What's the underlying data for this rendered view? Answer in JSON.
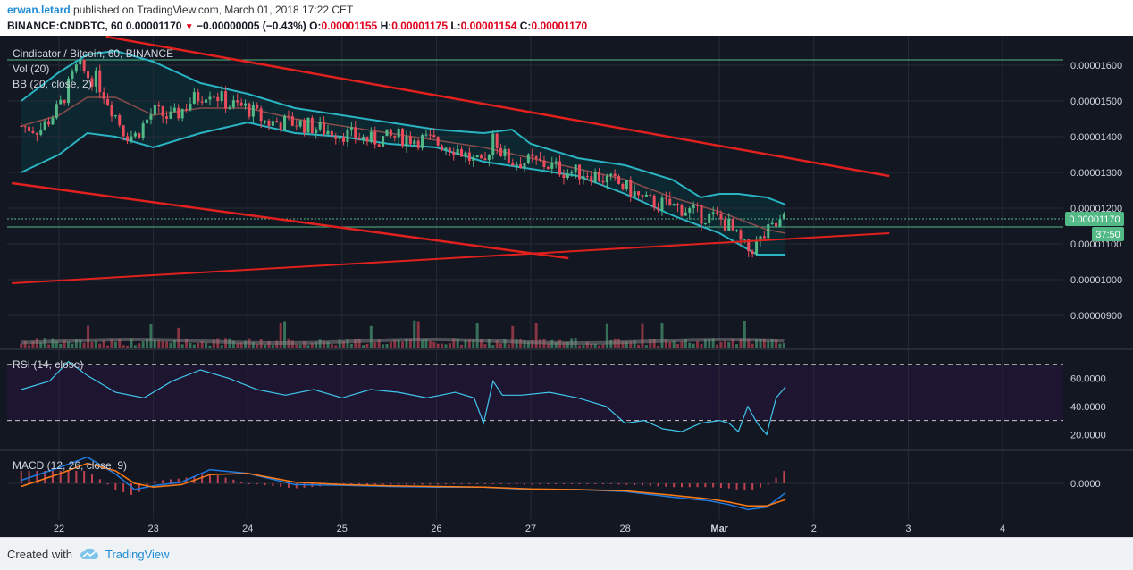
{
  "header": {
    "author": "erwan.letard",
    "published": "published on TradingView.com, March 01, 2018 17:22 CET",
    "symbol": "BINANCE:CNDBTC, 60",
    "last": "0.00001170",
    "change": "−0.00000005 (−0.43%)",
    "o_label": "O:",
    "o": "0.00001155",
    "h_label": "H:",
    "h": "0.00001175",
    "l_label": "L:",
    "l": "0.00001154",
    "c_label": "C:",
    "c": "0.00001170"
  },
  "footer": {
    "created_with": "Created with",
    "brand": "TradingView"
  },
  "colors": {
    "background": "#131722",
    "bb_fill": "#0d2731",
    "bb_band": "#2ab3c2",
    "bb_basis": "#8a4b4b",
    "candle_up": "#53b987",
    "candle_down": "#eb4d5c",
    "trendline": "#e0211d",
    "rsi_line": "#3fc6ec",
    "rsi_fill": "#1e1530",
    "macd_line": "#1f7ae0",
    "signal_line": "#ff7b16",
    "price_label": "#53b987"
  },
  "chart_data": [
    {
      "type": "candlestick",
      "title": "Cindicator / Bitcoin, 60, BINANCE",
      "indicators": [
        "Vol (20)",
        "BB (20, close, 2)"
      ],
      "x_ticks": [
        "22",
        "23",
        "24",
        "25",
        "26",
        "27",
        "28",
        "Mar",
        "2",
        "3",
        "4"
      ],
      "y_ticks": [
        "0.00001600",
        "0.00001500",
        "0.00001400",
        "0.00001300",
        "0.00001200",
        "0.00001100",
        "0.00001000",
        "0.00000900"
      ],
      "ylim": [
        8.3e-06,
        1.72e-05
      ],
      "last_price": "0.00001170",
      "countdown": "37:50",
      "series": [
        {
          "name": "close (approx.)",
          "x": [
            21.6,
            21.8,
            22.0,
            22.1,
            22.2,
            22.3,
            22.4,
            22.5,
            22.6,
            22.7,
            22.8,
            23.0,
            23.2,
            23.4,
            23.6,
            23.8,
            24.0,
            24.2,
            24.5,
            24.8,
            25.0,
            25.3,
            25.6,
            25.9,
            26.2,
            26.4,
            26.5,
            26.6,
            26.7,
            26.8,
            27.0,
            27.2,
            27.4,
            27.6,
            27.8,
            28.0,
            28.2,
            28.4,
            28.6,
            28.8,
            29.0,
            29.1,
            29.2,
            29.3,
            29.4,
            29.5,
            29.6,
            29.7
          ],
          "values": [
            1.43e-05,
            1.42e-05,
            1.48e-05,
            1.54e-05,
            1.6e-05,
            1.57e-05,
            1.56e-05,
            1.51e-05,
            1.46e-05,
            1.41e-05,
            1.4e-05,
            1.47e-05,
            1.45e-05,
            1.5e-05,
            1.53e-05,
            1.49e-05,
            1.48e-05,
            1.44e-05,
            1.44e-05,
            1.42e-05,
            1.41e-05,
            1.39e-05,
            1.4e-05,
            1.39e-05,
            1.37e-05,
            1.33e-05,
            1.31e-05,
            1.41e-05,
            1.35e-05,
            1.33e-05,
            1.33e-05,
            1.32e-05,
            1.3e-05,
            1.3e-05,
            1.28e-05,
            1.26e-05,
            1.22e-05,
            1.21e-05,
            1.2e-05,
            1.18e-05,
            1.17e-05,
            1.15e-05,
            1.11e-05,
            1.08e-05,
            1.1e-05,
            1.13e-05,
            1.15e-05,
            1.17e-05
          ]
        },
        {
          "name": "BB upper (approx.)",
          "x": [
            21.6,
            22.0,
            22.3,
            22.6,
            23.0,
            23.5,
            24.0,
            24.5,
            25.0,
            25.5,
            26.0,
            26.5,
            26.8,
            27.0,
            27.5,
            28.0,
            28.5,
            28.8,
            29.0,
            29.2,
            29.5,
            29.7
          ],
          "values": [
            1.5e-05,
            1.58e-05,
            1.63e-05,
            1.64e-05,
            1.61e-05,
            1.55e-05,
            1.52e-05,
            1.48e-05,
            1.46e-05,
            1.44e-05,
            1.42e-05,
            1.41e-05,
            1.42e-05,
            1.38e-05,
            1.34e-05,
            1.32e-05,
            1.28e-05,
            1.23e-05,
            1.24e-05,
            1.24e-05,
            1.23e-05,
            1.21e-05
          ]
        },
        {
          "name": "BB basis (approx.)",
          "x": [
            21.6,
            22.0,
            22.3,
            22.6,
            23.0,
            23.5,
            24.0,
            24.5,
            25.0,
            25.5,
            26.0,
            26.5,
            27.0,
            27.5,
            28.0,
            28.5,
            29.0,
            29.3,
            29.5,
            29.7
          ],
          "values": [
            1.43e-05,
            1.46e-05,
            1.51e-05,
            1.51e-05,
            1.46e-05,
            1.48e-05,
            1.48e-05,
            1.45e-05,
            1.43e-05,
            1.41e-05,
            1.39e-05,
            1.37e-05,
            1.34e-05,
            1.31e-05,
            1.28e-05,
            1.23e-05,
            1.19e-05,
            1.16e-05,
            1.14e-05,
            1.13e-05
          ]
        },
        {
          "name": "BB lower (approx.)",
          "x": [
            21.6,
            22.0,
            22.3,
            22.6,
            23.0,
            23.5,
            24.0,
            24.5,
            25.0,
            25.5,
            26.0,
            26.5,
            27.0,
            27.5,
            28.0,
            28.5,
            29.0,
            29.2,
            29.4,
            29.6,
            29.7
          ],
          "values": [
            1.3e-05,
            1.35e-05,
            1.41e-05,
            1.4e-05,
            1.37e-05,
            1.41e-05,
            1.44e-05,
            1.41e-05,
            1.4e-05,
            1.38e-05,
            1.37e-05,
            1.33e-05,
            1.31e-05,
            1.29e-05,
            1.24e-05,
            1.18e-05,
            1.13e-05,
            1.1e-05,
            1.07e-05,
            1.07e-05,
            1.07e-05
          ]
        },
        {
          "name": "trendline A",
          "x": [
            22.5,
            30.8
          ],
          "values": [
            1.68e-05,
            1.29e-05
          ]
        },
        {
          "name": "trendline B",
          "x": [
            21.5,
            27.4
          ],
          "values": [
            1.27e-05,
            1.06e-05
          ]
        },
        {
          "name": "trendline C",
          "x": [
            21.5,
            30.8
          ],
          "values": [
            9.9e-06,
            1.13e-05
          ]
        }
      ]
    },
    {
      "type": "line",
      "title": "RSI (14, close)",
      "y_ticks": [
        "60.0000",
        "40.0000",
        "20.0000"
      ],
      "ylim": [
        10,
        80
      ],
      "levels": [
        70,
        30
      ],
      "series": [
        {
          "name": "RSI (approx.)",
          "x": [
            21.6,
            21.9,
            22.1,
            22.3,
            22.6,
            22.9,
            23.2,
            23.5,
            23.8,
            24.1,
            24.4,
            24.7,
            25.0,
            25.3,
            25.6,
            25.9,
            26.2,
            26.4,
            26.5,
            26.6,
            26.7,
            26.9,
            27.2,
            27.5,
            27.8,
            28.0,
            28.2,
            28.4,
            28.6,
            28.8,
            29.0,
            29.1,
            29.2,
            29.3,
            29.4,
            29.5,
            29.6,
            29.7
          ],
          "values": [
            52,
            58,
            72,
            62,
            50,
            46,
            58,
            66,
            60,
            52,
            48,
            52,
            46,
            52,
            50,
            46,
            50,
            46,
            28,
            58,
            48,
            48,
            50,
            46,
            40,
            28,
            30,
            24,
            22,
            28,
            30,
            28,
            22,
            40,
            28,
            20,
            46,
            54
          ]
        }
      ]
    },
    {
      "type": "line",
      "title": "MACD (12, 26, close, 9)",
      "y_ticks": [
        "0.0000"
      ],
      "ylim": [
        -5,
        5
      ],
      "series": [
        {
          "name": "MACD (approx.)",
          "x": [
            21.6,
            22.0,
            22.3,
            22.6,
            22.8,
            23.0,
            23.3,
            23.6,
            24.0,
            24.5,
            25.0,
            25.5,
            26.0,
            26.5,
            27.0,
            27.5,
            28.0,
            28.5,
            28.9,
            29.1,
            29.3,
            29.5,
            29.7
          ],
          "values": [
            0.5,
            2.5,
            4.2,
            1.5,
            -1.0,
            -0.4,
            0.2,
            2.2,
            1.6,
            -0.2,
            -0.3,
            -0.5,
            -0.6,
            -0.6,
            -1.0,
            -1.0,
            -1.3,
            -2.2,
            -2.8,
            -3.4,
            -4.2,
            -3.8,
            -1.5
          ]
        },
        {
          "name": "Signal (approx.)",
          "x": [
            21.6,
            22.0,
            22.3,
            22.6,
            22.8,
            23.0,
            23.3,
            23.6,
            24.0,
            24.5,
            25.0,
            25.5,
            26.0,
            26.5,
            27.0,
            27.5,
            28.0,
            28.5,
            28.9,
            29.1,
            29.3,
            29.5,
            29.7
          ],
          "values": [
            -0.5,
            1.5,
            3.2,
            2.0,
            0.0,
            -0.6,
            -0.2,
            1.4,
            1.6,
            0.2,
            -0.2,
            -0.4,
            -0.5,
            -0.6,
            -0.9,
            -1.0,
            -1.2,
            -1.9,
            -2.5,
            -3.0,
            -3.6,
            -3.6,
            -2.6
          ]
        }
      ]
    }
  ]
}
